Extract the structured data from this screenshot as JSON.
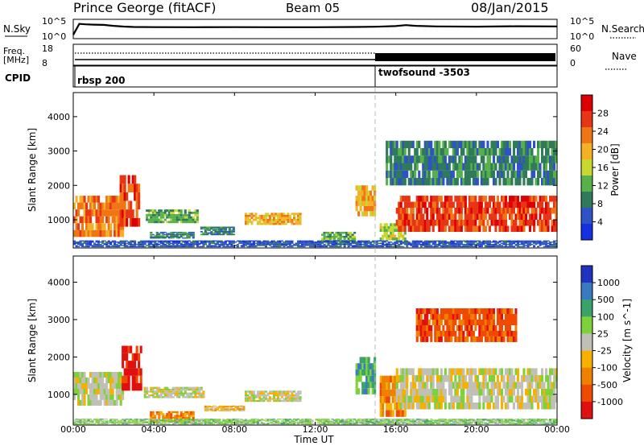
{
  "header": {
    "station": "Prince George (fitACF)",
    "beam": "Beam 05",
    "date": "08/Jan/2015"
  },
  "noise_panel": {
    "left_label": "N.Sky",
    "right_label": "N.Search",
    "left_ticks": [
      "10^5",
      "10^0"
    ],
    "right_ticks": [
      "10^5",
      "10^0"
    ]
  },
  "freq_panel": {
    "left_label_1": "Freq.",
    "left_label_2": "[MHz]",
    "left_ticks": [
      "18",
      "8"
    ],
    "right_label": "Nave",
    "right_ticks": [
      "60",
      "0"
    ]
  },
  "cpid_panel": {
    "label": "CPID",
    "modes": [
      {
        "name": "rbsp 200",
        "start_hour": 0
      },
      {
        "name": "twofsound -3503",
        "start_hour": 15
      }
    ]
  },
  "xaxis": {
    "label": "Time UT",
    "ticks": [
      "00:00",
      "04:00",
      "08:00",
      "12:00",
      "16:00",
      "20:00",
      "00:00"
    ]
  },
  "colors": {
    "power": [
      "#1530e0",
      "#2f52c6",
      "#2e7a5a",
      "#58b04a",
      "#c8d830",
      "#f5b025",
      "#f07515",
      "#e83515",
      "#dd0000"
    ],
    "velocity": [
      "#1f33c0",
      "#3a7bc0",
      "#3aa36a",
      "#7ed13a",
      "#c0c0b8",
      "#f5b000",
      "#f08000",
      "#f04a00",
      "#e01010"
    ],
    "divider": "#bbbbbb"
  },
  "chart_data": [
    {
      "type": "line",
      "title": "N.Sky / N.Search",
      "x_range": [
        0,
        24
      ],
      "yscale": "log",
      "ylim": [
        1,
        100000
      ],
      "series": [
        {
          "name": "N.Sky",
          "x": [
            0.0,
            0.3,
            0.6,
            1.0,
            1.5,
            2.0,
            2.5,
            3.0,
            4.0,
            6.0,
            8.0,
            10.0,
            12.0,
            14.0,
            15.0,
            16.0,
            16.5,
            17.0,
            18.0,
            20.0,
            22.0,
            24.0
          ],
          "y": [
            5,
            12000,
            9000,
            7000,
            6000,
            3000,
            1800,
            1300,
            1200,
            1150,
            1200,
            1100,
            1100,
            1300,
            1600,
            2500,
            5000,
            3000,
            2000,
            1700,
            2200,
            2000
          ]
        }
      ]
    },
    {
      "type": "line",
      "title": "Freq. / Nave",
      "x_range": [
        0,
        24
      ],
      "series": [
        {
          "name": "Freq.",
          "x": [
            0,
            15,
            15,
            24
          ],
          "y": [
            12.5,
            12.5,
            12,
            12
          ]
        },
        {
          "name": "Nave",
          "x": [
            0,
            24
          ],
          "y": [
            8,
            8
          ]
        }
      ]
    },
    {
      "type": "heatmap",
      "title": "Power [dB]",
      "xlabel": "Time UT",
      "ylabel": "Slant Range [km]",
      "x_range": [
        0,
        24
      ],
      "ylim": [
        180,
        4700
      ],
      "y_ticks": [
        1000,
        2000,
        3000,
        4000
      ],
      "colorbar_label": "Power [dB]",
      "colorbar_ticks": [
        "4",
        "8",
        "12",
        "16",
        "20",
        "24",
        "28"
      ],
      "regions": [
        {
          "t0": 0.0,
          "t1": 2.5,
          "r0": 500,
          "r1": 1700,
          "level": 6
        },
        {
          "t0": 2.3,
          "t1": 3.3,
          "r0": 800,
          "r1": 2300,
          "level": 7
        },
        {
          "t0": 3.6,
          "t1": 6.2,
          "r0": 900,
          "r1": 1300,
          "level": 3
        },
        {
          "t0": 3.8,
          "t1": 6.0,
          "r0": 450,
          "r1": 650,
          "level": 2
        },
        {
          "t0": 6.3,
          "t1": 8.0,
          "r0": 550,
          "r1": 800,
          "level": 2
        },
        {
          "t0": 8.5,
          "t1": 11.3,
          "r0": 850,
          "r1": 1200,
          "level": 5
        },
        {
          "t0": 12.3,
          "t1": 14.0,
          "r0": 300,
          "r1": 650,
          "level": 3
        },
        {
          "t0": 14.0,
          "t1": 15.0,
          "r0": 1100,
          "r1": 2000,
          "level": 5
        },
        {
          "t0": 15.2,
          "t1": 16.5,
          "r0": 400,
          "r1": 900,
          "level": 4
        },
        {
          "t0": 16.0,
          "t1": 24.0,
          "r0": 650,
          "r1": 1700,
          "level": 7
        },
        {
          "t0": 15.5,
          "t1": 24.0,
          "r0": 2000,
          "r1": 3300,
          "level": 2
        },
        {
          "t0": 0.0,
          "t1": 24.0,
          "r0": 200,
          "r1": 400,
          "level": 1
        }
      ]
    },
    {
      "type": "heatmap",
      "title": "Velocity [m s^-1]",
      "xlabel": "Time UT",
      "ylabel": "Slant Range [km]",
      "x_range": [
        0,
        24
      ],
      "ylim": [
        180,
        4700
      ],
      "y_ticks": [
        1000,
        2000,
        3000,
        4000
      ],
      "colorbar_label": "Velocity [m s^-1]",
      "colorbar_ticks": [
        "1000",
        "500",
        "100",
        "25",
        "-25",
        "-100",
        "-500",
        "-1000"
      ],
      "regions": [
        {
          "t0": 0.0,
          "t1": 2.5,
          "r0": 700,
          "r1": 1600,
          "level": 4
        },
        {
          "t0": 2.4,
          "t1": 3.4,
          "r0": 1100,
          "r1": 2300,
          "level": 8
        },
        {
          "t0": 3.5,
          "t1": 6.5,
          "r0": 900,
          "r1": 1200,
          "level": 4
        },
        {
          "t0": 3.8,
          "t1": 6.0,
          "r0": 250,
          "r1": 550,
          "level": 6
        },
        {
          "t0": 6.5,
          "t1": 8.5,
          "r0": 550,
          "r1": 700,
          "level": 5
        },
        {
          "t0": 8.5,
          "t1": 11.3,
          "r0": 800,
          "r1": 1100,
          "level": 4
        },
        {
          "t0": 14.0,
          "t1": 15.0,
          "r0": 1000,
          "r1": 2000,
          "level": 2
        },
        {
          "t0": 15.2,
          "t1": 16.5,
          "r0": 400,
          "r1": 1500,
          "level": 6
        },
        {
          "t0": 16.0,
          "t1": 24.0,
          "r0": 600,
          "r1": 1700,
          "level": 4
        },
        {
          "t0": 17.0,
          "t1": 22.0,
          "r0": 2400,
          "r1": 3300,
          "level": 7
        },
        {
          "t0": 0.0,
          "t1": 24.0,
          "r0": 200,
          "r1": 350,
          "level": 3
        }
      ]
    }
  ]
}
